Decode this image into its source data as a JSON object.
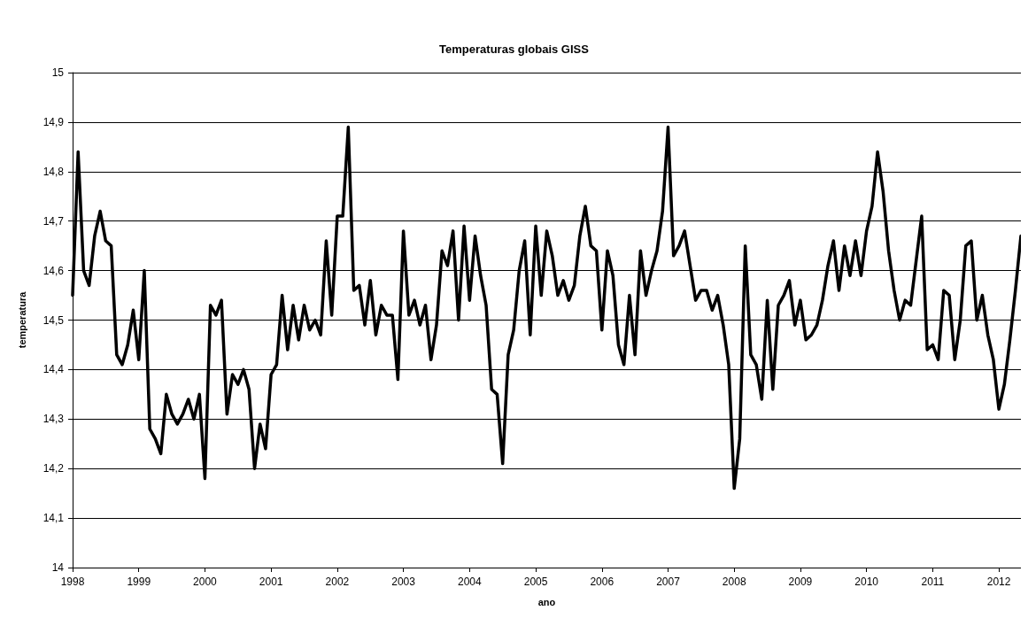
{
  "chart_data": {
    "type": "line",
    "title": "Temperaturas globais GISS",
    "xlabel": "ano",
    "ylabel": "temperatura",
    "x": [
      "1998-01",
      "1998-02",
      "1998-03",
      "1998-04",
      "1998-05",
      "1998-06",
      "1998-07",
      "1998-08",
      "1998-09",
      "1998-10",
      "1998-11",
      "1998-12",
      "1999-01",
      "1999-02",
      "1999-03",
      "1999-04",
      "1999-05",
      "1999-06",
      "1999-07",
      "1999-08",
      "1999-09",
      "1999-10",
      "1999-11",
      "1999-12",
      "2000-01",
      "2000-02",
      "2000-03",
      "2000-04",
      "2000-05",
      "2000-06",
      "2000-07",
      "2000-08",
      "2000-09",
      "2000-10",
      "2000-11",
      "2000-12",
      "2001-01",
      "2001-02",
      "2001-03",
      "2001-04",
      "2001-05",
      "2001-06",
      "2001-07",
      "2001-08",
      "2001-09",
      "2001-10",
      "2001-11",
      "2001-12",
      "2002-01",
      "2002-02",
      "2002-03",
      "2002-04",
      "2002-05",
      "2002-06",
      "2002-07",
      "2002-08",
      "2002-09",
      "2002-10",
      "2002-11",
      "2002-12",
      "2003-01",
      "2003-02",
      "2003-03",
      "2003-04",
      "2003-05",
      "2003-06",
      "2003-07",
      "2003-08",
      "2003-09",
      "2003-10",
      "2003-11",
      "2003-12",
      "2004-01",
      "2004-02",
      "2004-03",
      "2004-04",
      "2004-05",
      "2004-06",
      "2004-07",
      "2004-08",
      "2004-09",
      "2004-10",
      "2004-11",
      "2004-12",
      "2005-01",
      "2005-02",
      "2005-03",
      "2005-04",
      "2005-05",
      "2005-06",
      "2005-07",
      "2005-08",
      "2005-09",
      "2005-10",
      "2005-11",
      "2005-12",
      "2006-01",
      "2006-02",
      "2006-03",
      "2006-04",
      "2006-05",
      "2006-06",
      "2006-07",
      "2006-08",
      "2006-09",
      "2006-10",
      "2006-11",
      "2006-12",
      "2007-01",
      "2007-02",
      "2007-03",
      "2007-04",
      "2007-05",
      "2007-06",
      "2007-07",
      "2007-08",
      "2007-09",
      "2007-10",
      "2007-11",
      "2007-12",
      "2008-01",
      "2008-02",
      "2008-03",
      "2008-04",
      "2008-05",
      "2008-06",
      "2008-07",
      "2008-08",
      "2008-09",
      "2008-10",
      "2008-11",
      "2008-12",
      "2009-01",
      "2009-02",
      "2009-03",
      "2009-04",
      "2009-05",
      "2009-06",
      "2009-07",
      "2009-08",
      "2009-09",
      "2009-10",
      "2009-11",
      "2009-12",
      "2010-01",
      "2010-02",
      "2010-03",
      "2010-04",
      "2010-05",
      "2010-06",
      "2010-07",
      "2010-08",
      "2010-09",
      "2010-10",
      "2010-11",
      "2010-12",
      "2011-01",
      "2011-02",
      "2011-03",
      "2011-04",
      "2011-05",
      "2011-06",
      "2011-07",
      "2011-08",
      "2011-09",
      "2011-10",
      "2011-11",
      "2011-12",
      "2012-01",
      "2012-02",
      "2012-03",
      "2012-04",
      "2012-05"
    ],
    "series": [
      {
        "color": "#000000",
        "values": [
          14.55,
          14.84,
          14.6,
          14.57,
          14.67,
          14.72,
          14.66,
          14.65,
          14.43,
          14.41,
          14.45,
          14.52,
          14.42,
          14.6,
          14.28,
          14.26,
          14.23,
          14.35,
          14.31,
          14.29,
          14.31,
          14.34,
          14.3,
          14.35,
          14.18,
          14.53,
          14.51,
          14.54,
          14.31,
          14.39,
          14.37,
          14.4,
          14.36,
          14.2,
          14.29,
          14.24,
          14.39,
          14.41,
          14.55,
          14.44,
          14.53,
          14.46,
          14.53,
          14.48,
          14.5,
          14.47,
          14.66,
          14.51,
          14.71,
          14.71,
          14.89,
          14.56,
          14.57,
          14.49,
          14.58,
          14.47,
          14.53,
          14.51,
          14.51,
          14.38,
          14.68,
          14.51,
          14.54,
          14.49,
          14.53,
          14.42,
          14.49,
          14.64,
          14.61,
          14.68,
          14.5,
          14.69,
          14.54,
          14.67,
          14.59,
          14.53,
          14.36,
          14.35,
          14.21,
          14.43,
          14.48,
          14.6,
          14.66,
          14.47,
          14.69,
          14.55,
          14.68,
          14.63,
          14.55,
          14.58,
          14.54,
          14.57,
          14.67,
          14.73,
          14.65,
          14.64,
          14.48,
          14.64,
          14.59,
          14.45,
          14.41,
          14.55,
          14.43,
          14.64,
          14.55,
          14.6,
          14.64,
          14.72,
          14.89,
          14.63,
          14.65,
          14.68,
          14.61,
          14.54,
          14.56,
          14.56,
          14.52,
          14.55,
          14.49,
          14.41,
          14.16,
          14.26,
          14.65,
          14.43,
          14.41,
          14.34,
          14.54,
          14.36,
          14.53,
          14.55,
          14.58,
          14.49,
          14.54,
          14.46,
          14.47,
          14.49,
          14.54,
          14.61,
          14.66,
          14.56,
          14.65,
          14.59,
          14.66,
          14.59,
          14.68,
          14.73,
          14.84,
          14.76,
          14.64,
          14.56,
          14.5,
          14.54,
          14.53,
          14.62,
          14.71,
          14.44,
          14.45,
          14.42,
          14.56,
          14.55,
          14.42,
          14.5,
          14.65,
          14.66,
          14.5,
          14.55,
          14.47,
          14.42,
          14.32,
          14.37,
          14.46,
          14.56,
          14.67
        ]
      }
    ],
    "xlim": [
      "1998-01",
      "2012-05"
    ],
    "xticks": [
      "1998",
      "1999",
      "2000",
      "2001",
      "2002",
      "2003",
      "2004",
      "2005",
      "2006",
      "2007",
      "2008",
      "2009",
      "2010",
      "2011",
      "2012"
    ],
    "ylim": [
      14,
      15
    ],
    "yticks": [
      14,
      {
        "value": 14.1,
        "label": "14,1"
      },
      {
        "value": 14.2,
        "label": "14,2"
      },
      {
        "value": 14.3,
        "label": "14,3"
      },
      {
        "value": 14.4,
        "label": "14,4"
      },
      {
        "value": 14.5,
        "label": "14,5"
      },
      {
        "value": 14.6,
        "label": "14,6"
      },
      {
        "value": 14.7,
        "label": "14,7"
      },
      {
        "value": 14.8,
        "label": "14,8"
      },
      {
        "value": 14.9,
        "label": "14,9"
      },
      15
    ],
    "grid": "y",
    "marker": "none",
    "line_style": "solid"
  }
}
